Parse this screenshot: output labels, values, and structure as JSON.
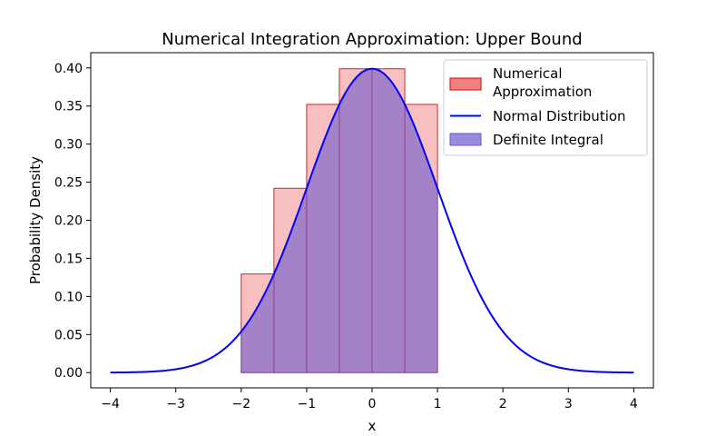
{
  "chart_data": {
    "type": "area",
    "title": "Numerical Integration Approximation: Upper Bound",
    "xlabel": "x",
    "ylabel": "Probability Density",
    "xlim": [
      -4.3,
      4.3
    ],
    "ylim": [
      -0.02,
      0.42
    ],
    "xticks": [
      -4,
      -3,
      -2,
      -1,
      0,
      1,
      2,
      3,
      4
    ],
    "xtick_labels": [
      "−4",
      "−3",
      "−2",
      "−1",
      "0",
      "1",
      "2",
      "3",
      "4"
    ],
    "yticks": [
      0.0,
      0.05,
      0.1,
      0.15,
      0.2,
      0.25,
      0.3,
      0.35,
      0.4
    ],
    "ytick_labels": [
      "0.00",
      "0.05",
      "0.10",
      "0.15",
      "0.20",
      "0.25",
      "0.30",
      "0.35",
      "0.40"
    ],
    "grid": false,
    "legend_position": "top-right",
    "series": [
      {
        "name": "Numerical Approximation",
        "kind": "bars",
        "color": "#f08080",
        "edge_color": "#d62728",
        "bars": [
          {
            "x0": -2.0,
            "x1": -1.5,
            "height": 0.1295
          },
          {
            "x0": -1.5,
            "x1": -1.0,
            "height": 0.242
          },
          {
            "x0": -1.0,
            "x1": -0.5,
            "height": 0.3521
          },
          {
            "x0": -0.5,
            "x1": 0.0,
            "height": 0.3989
          },
          {
            "x0": 0.0,
            "x1": 0.5,
            "height": 0.3989
          },
          {
            "x0": 0.5,
            "x1": 1.0,
            "height": 0.3521
          }
        ]
      },
      {
        "name": "Normal Distribution",
        "kind": "line",
        "color": "#0000ff",
        "x_range": [
          -4,
          4
        ],
        "mean": 0,
        "std": 1
      },
      {
        "name": "Definite Integral",
        "kind": "fill",
        "color": "#6a5acd",
        "x_range": [
          -2,
          1
        ]
      }
    ]
  }
}
